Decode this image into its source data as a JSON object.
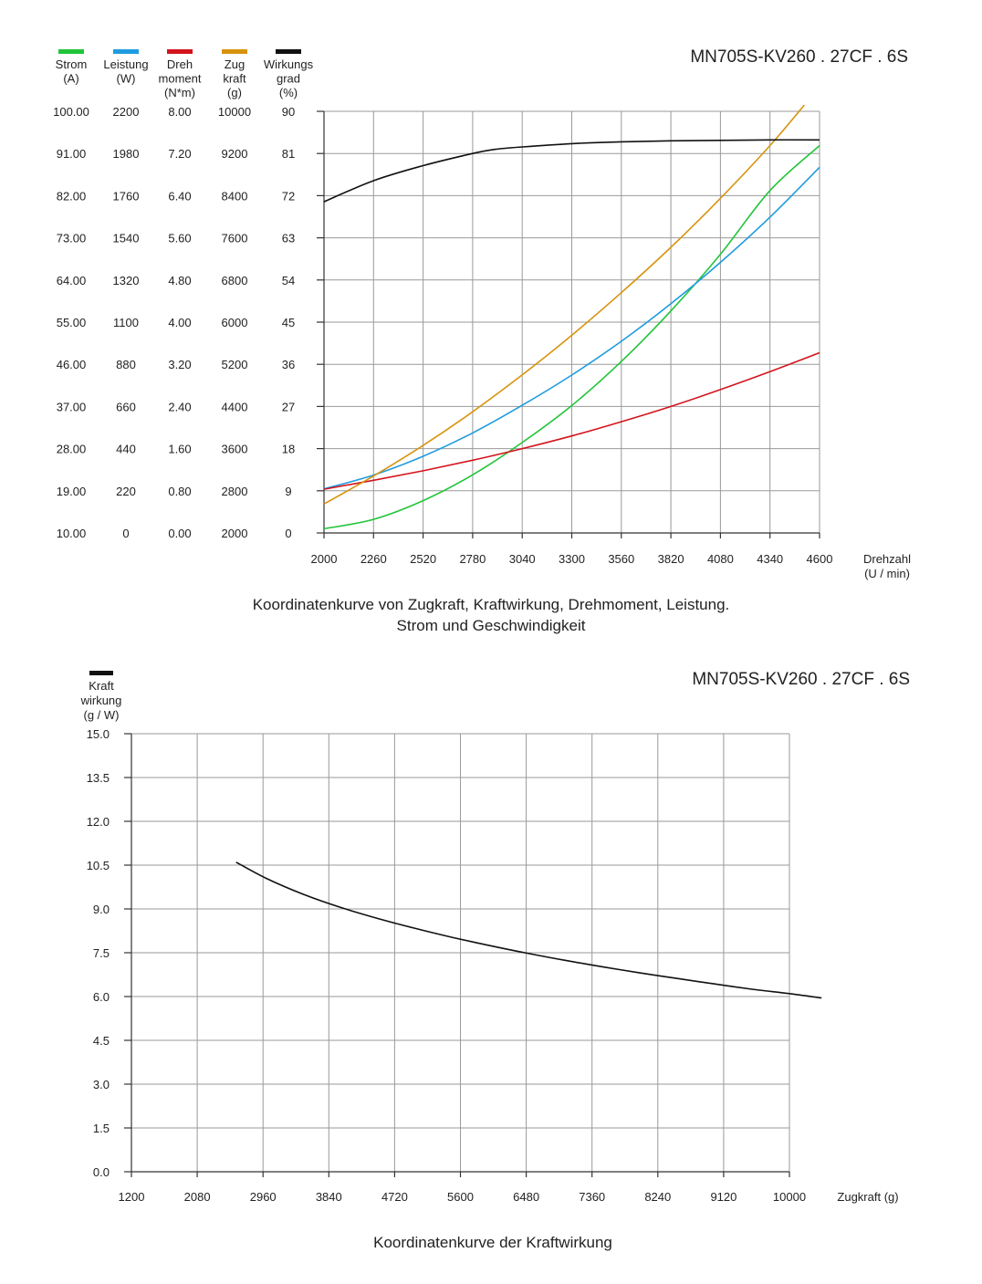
{
  "chart_data": [
    {
      "type": "line",
      "model": "MN705S-KV260 . 27CF . 6S",
      "caption_line1": "Koordinatenkurve von Zugkraft, Kraftwirkung, Drehmoment, Leistung.",
      "caption_line2": "Strom und Geschwindigkeit",
      "xlabel_line1": "Drehzahl",
      "xlabel_line2": "(U / min)",
      "xlim": [
        2000,
        4600
      ],
      "x_ticks": [
        "2000",
        "2260",
        "2520",
        "2780",
        "3040",
        "3300",
        "3560",
        "3820",
        "4080",
        "4340",
        "4600"
      ],
      "grid": true,
      "axes": [
        {
          "key": "strom",
          "header": [
            "Strom",
            "(A)"
          ],
          "color": "#22c43a",
          "min": 10,
          "max": 100,
          "ticks": [
            "100.00",
            "91.00",
            "82.00",
            "73.00",
            "64.00",
            "55.00",
            "46.00",
            "37.00",
            "28.00",
            "19.00",
            "10.00"
          ]
        },
        {
          "key": "leistung",
          "header": [
            "Leistung",
            "(W)"
          ],
          "color": "#1e9be0",
          "min": 0,
          "max": 2200,
          "ticks": [
            "2200",
            "1980",
            "1760",
            "1540",
            "1320",
            "1100",
            "880",
            "660",
            "440",
            "220",
            "0"
          ]
        },
        {
          "key": "drehmoment",
          "header": [
            "Dreh",
            "moment",
            "(N*m)"
          ],
          "color": "#d3141c",
          "min": 0,
          "max": 8,
          "ticks": [
            "8.00",
            "7.20",
            "6.40",
            "5.60",
            "4.80",
            "4.00",
            "3.20",
            "2.40",
            "1.60",
            "0.80",
            "0.00"
          ]
        },
        {
          "key": "zugkraft",
          "header": [
            "Zug",
            "kraft",
            "(g)"
          ],
          "color": "#d7930e",
          "min": 2000,
          "max": 10000,
          "ticks": [
            "10000",
            "9200",
            "8400",
            "7600",
            "6800",
            "6000",
            "5200",
            "4400",
            "3600",
            "2800",
            "2000"
          ]
        },
        {
          "key": "wirkungsgrad",
          "header": [
            "Wirkungs",
            "grad",
            "(%)"
          ],
          "color": "#111111",
          "min": 0,
          "max": 90,
          "ticks": [
            "90",
            "81",
            "72",
            "63",
            "54",
            "45",
            "36",
            "27",
            "18",
            "9",
            "0"
          ]
        }
      ],
      "series": [
        {
          "axis": "strom",
          "color": "#22c43a",
          "x": [
            2000,
            2260,
            2520,
            2780,
            3040,
            3300,
            3560,
            3820,
            4080,
            4340,
            4600
          ],
          "y": [
            10.9,
            12.9,
            16.9,
            22.4,
            29.3,
            37.2,
            46.6,
            57.4,
            69.5,
            83.1,
            92.7
          ]
        },
        {
          "axis": "leistung",
          "color": "#1e9be0",
          "x": [
            2000,
            2260,
            2520,
            2780,
            3040,
            3300,
            3560,
            3820,
            4080,
            4340,
            4600
          ],
          "y": [
            230,
            302,
            400,
            522,
            666,
            824,
            1000,
            1196,
            1412,
            1648,
            1908
          ]
        },
        {
          "axis": "drehmoment",
          "color": "#d3141c",
          "x": [
            2000,
            2260,
            2520,
            2780,
            3040,
            3300,
            3560,
            3820,
            4080,
            4340,
            4600
          ],
          "y": [
            0.83,
            1.0,
            1.18,
            1.38,
            1.6,
            1.84,
            2.11,
            2.4,
            2.72,
            3.06,
            3.42
          ]
        },
        {
          "axis": "zugkraft",
          "color": "#d7930e",
          "x": [
            2000,
            2260,
            2520,
            2780,
            3040,
            3300,
            3560,
            3820,
            4080,
            4340,
            4520
          ],
          "y": [
            2550,
            3080,
            3660,
            4300,
            5000,
            5750,
            6560,
            7420,
            8350,
            9350,
            10120
          ]
        },
        {
          "axis": "wirkungsgrad",
          "color": "#111111",
          "x": [
            2000,
            2260,
            2520,
            2780,
            2900,
            3040,
            3300,
            3560,
            3820,
            4080,
            4340,
            4600
          ],
          "y": [
            70.7,
            75.2,
            78.4,
            81.0,
            81.9,
            82.4,
            83.1,
            83.5,
            83.7,
            83.8,
            83.9,
            83.9
          ]
        }
      ]
    },
    {
      "type": "line",
      "model": "MN705S-KV260 . 27CF . 6S",
      "caption": "Koordinatenkurve der Kraftwirkung",
      "legend_color": "#111111",
      "ylabel_lines": [
        "Kraft",
        "wirkung",
        "(g / W)"
      ],
      "xlabel": "Zugkraft (g)",
      "xlim": [
        1200,
        10000
      ],
      "ylim": [
        0,
        15
      ],
      "x_ticks": [
        "1200",
        "2080",
        "2960",
        "3840",
        "4720",
        "5600",
        "6480",
        "7360",
        "8240",
        "9120",
        "10000"
      ],
      "y_ticks": [
        "15.0",
        "13.5",
        "12.0",
        "10.5",
        "9.0",
        "7.5",
        "6.0",
        "4.5",
        "3.0",
        "1.5",
        "0.0"
      ],
      "grid": true,
      "series": [
        {
          "color": "#111111",
          "x": [
            2600,
            3000,
            3500,
            4000,
            4500,
            5000,
            5500,
            6000,
            6500,
            7000,
            7500,
            8000,
            8500,
            9000,
            9500,
            10000,
            10430
          ],
          "y": [
            10.6,
            10.05,
            9.5,
            9.05,
            8.67,
            8.33,
            8.02,
            7.74,
            7.48,
            7.24,
            7.02,
            6.81,
            6.62,
            6.43,
            6.25,
            6.1,
            5.95
          ]
        }
      ]
    }
  ]
}
